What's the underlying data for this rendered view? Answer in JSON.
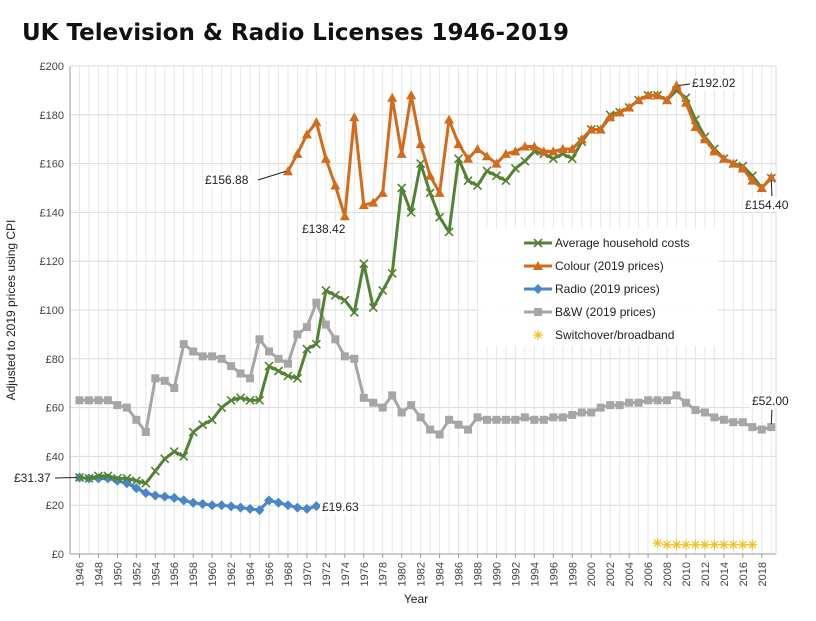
{
  "chart_data": {
    "type": "line",
    "title": "UK Television & Radio Licenses 1946-2019",
    "xlabel": "Year",
    "ylabel": "Adjusted to 2019 prices using CPI",
    "xlim": [
      1945,
      2019.5
    ],
    "ylim": [
      0,
      200
    ],
    "y_ticks": [
      "£0",
      "£20",
      "£40",
      "£60",
      "£80",
      "£100",
      "£120",
      "£140",
      "£160",
      "£180",
      "£200"
    ],
    "x_ticks": [
      1946,
      1948,
      1950,
      1952,
      1954,
      1956,
      1958,
      1960,
      1962,
      1964,
      1966,
      1968,
      1970,
      1972,
      1974,
      1976,
      1978,
      1980,
      1982,
      1984,
      1986,
      1988,
      1990,
      1992,
      1994,
      1996,
      1998,
      2000,
      2002,
      2004,
      2006,
      2008,
      2010,
      2012,
      2014,
      2016,
      2018
    ],
    "grid": true,
    "legend_position": "right",
    "series": [
      {
        "name": "Average household costs",
        "color": "#548235",
        "marker": "x",
        "x": [
          1946,
          1947,
          1948,
          1949,
          1950,
          1951,
          1952,
          1953,
          1954,
          1955,
          1956,
          1957,
          1958,
          1959,
          1960,
          1961,
          1962,
          1963,
          1964,
          1965,
          1966,
          1967,
          1968,
          1969,
          1970,
          1971,
          1972,
          1973,
          1974,
          1975,
          1976,
          1977,
          1978,
          1979,
          1980,
          1981,
          1982,
          1983,
          1984,
          1985,
          1986,
          1987,
          1988,
          1989,
          1990,
          1991,
          1992,
          1993,
          1994,
          1995,
          1996,
          1997,
          1998,
          1999,
          2000,
          2001,
          2002,
          2003,
          2004,
          2005,
          2006,
          2007,
          2008,
          2009,
          2010,
          2011,
          2012,
          2013,
          2014,
          2015,
          2016,
          2017,
          2018,
          2019
        ],
        "y": [
          31.37,
          31,
          32,
          32,
          31,
          31,
          30,
          29,
          34,
          39,
          42,
          40,
          50,
          53,
          55,
          60,
          63,
          64,
          63,
          63,
          77,
          75,
          73,
          72,
          84,
          86,
          108,
          106,
          104,
          99,
          119,
          101,
          108,
          115,
          150,
          140,
          160,
          148,
          138,
          132,
          162,
          153,
          151,
          157,
          155,
          153,
          158,
          161,
          165,
          164,
          162,
          164,
          162,
          169,
          174,
          174,
          180,
          181,
          183,
          186,
          188,
          188,
          186,
          190,
          187,
          178,
          171,
          166,
          162,
          160,
          159,
          155,
          150,
          154
        ]
      },
      {
        "name": "Colour (2019 prices)",
        "color": "#d36b1d",
        "marker": "triangle",
        "x": [
          1968,
          1969,
          1970,
          1971,
          1972,
          1973,
          1974,
          1975,
          1976,
          1977,
          1978,
          1979,
          1980,
          1981,
          1982,
          1983,
          1984,
          1985,
          1986,
          1987,
          1988,
          1989,
          1990,
          1991,
          1992,
          1993,
          1994,
          1995,
          1996,
          1997,
          1998,
          1999,
          2000,
          2001,
          2002,
          2003,
          2004,
          2005,
          2006,
          2007,
          2008,
          2009,
          2010,
          2011,
          2012,
          2013,
          2014,
          2015,
          2016,
          2017,
          2018,
          2019
        ],
        "y": [
          156.88,
          164,
          172,
          177,
          162,
          151,
          138.42,
          179,
          143,
          144,
          148,
          187,
          164,
          188,
          168,
          155,
          148,
          178,
          168,
          162,
          166,
          163,
          160,
          164,
          165,
          167,
          167,
          165,
          165,
          166,
          166,
          170,
          174,
          174,
          179,
          181,
          183,
          186,
          188,
          188,
          186,
          192.02,
          185,
          175,
          170,
          165,
          162,
          160,
          158,
          153,
          150,
          154.4
        ]
      },
      {
        "name": "Radio (2019 prices)",
        "color": "#4a86c8",
        "marker": "diamond",
        "x": [
          1946,
          1947,
          1948,
          1949,
          1950,
          1951,
          1952,
          1953,
          1954,
          1955,
          1956,
          1957,
          1958,
          1959,
          1960,
          1961,
          1962,
          1963,
          1964,
          1965,
          1966,
          1967,
          1968,
          1969,
          1970,
          1971
        ],
        "y": [
          31.37,
          31,
          31,
          31,
          30,
          29,
          27,
          25,
          24,
          23.5,
          23,
          22,
          21,
          20.5,
          20,
          20,
          19.5,
          19,
          18.5,
          18,
          22,
          21,
          20,
          19,
          18.5,
          19.63
        ]
      },
      {
        "name": "B&W (2019 prices)",
        "color": "#a6a6a6",
        "marker": "square",
        "x": [
          1946,
          1947,
          1948,
          1949,
          1950,
          1951,
          1952,
          1953,
          1954,
          1955,
          1956,
          1957,
          1958,
          1959,
          1960,
          1961,
          1962,
          1963,
          1964,
          1965,
          1966,
          1967,
          1968,
          1969,
          1970,
          1971,
          1972,
          1973,
          1974,
          1975,
          1976,
          1977,
          1978,
          1979,
          1980,
          1981,
          1982,
          1983,
          1984,
          1985,
          1986,
          1987,
          1988,
          1989,
          1990,
          1991,
          1992,
          1993,
          1994,
          1995,
          1996,
          1997,
          1998,
          1999,
          2000,
          2001,
          2002,
          2003,
          2004,
          2005,
          2006,
          2007,
          2008,
          2009,
          2010,
          2011,
          2012,
          2013,
          2014,
          2015,
          2016,
          2017,
          2018,
          2019
        ],
        "y": [
          63,
          63,
          63,
          63,
          61,
          60,
          55,
          50,
          72,
          71,
          68,
          86,
          83,
          81,
          81,
          80,
          77,
          74,
          72,
          88,
          83,
          80,
          78,
          90,
          93,
          103,
          94,
          88,
          81,
          80,
          64,
          62,
          60,
          65,
          58,
          61,
          56,
          51,
          49,
          55,
          53,
          51,
          56,
          55,
          55,
          55,
          55,
          56,
          55,
          55,
          56,
          56,
          57,
          58,
          58,
          60,
          61,
          61,
          62,
          62,
          63,
          63,
          63,
          65,
          62,
          59,
          58,
          56,
          55,
          54,
          54,
          52,
          51,
          52
        ]
      },
      {
        "name": "Switchover/broadband",
        "color": "#f0c020",
        "marker": "asterisk",
        "x": [
          2007,
          2008,
          2009,
          2010,
          2011,
          2012,
          2013,
          2014,
          2015,
          2016,
          2017
        ],
        "y": [
          4.5,
          3.8,
          3.8,
          3.8,
          3.8,
          3.8,
          3.8,
          3.8,
          3.8,
          3.8,
          3.8
        ]
      }
    ],
    "annotations": [
      {
        "text": "£156.88",
        "x": 1968,
        "y": 156.88
      },
      {
        "text": "£138.42",
        "x": 1974,
        "y": 138.42
      },
      {
        "text": "£192.02",
        "x": 2009,
        "y": 192.02
      },
      {
        "text": "£154.40",
        "x": 2019,
        "y": 154.4
      },
      {
        "text": "£52.00",
        "x": 2019,
        "y": 52
      },
      {
        "text": "£31.37",
        "x": 1946,
        "y": 31.37
      },
      {
        "text": "£19.63",
        "x": 1971,
        "y": 19.63
      }
    ]
  }
}
